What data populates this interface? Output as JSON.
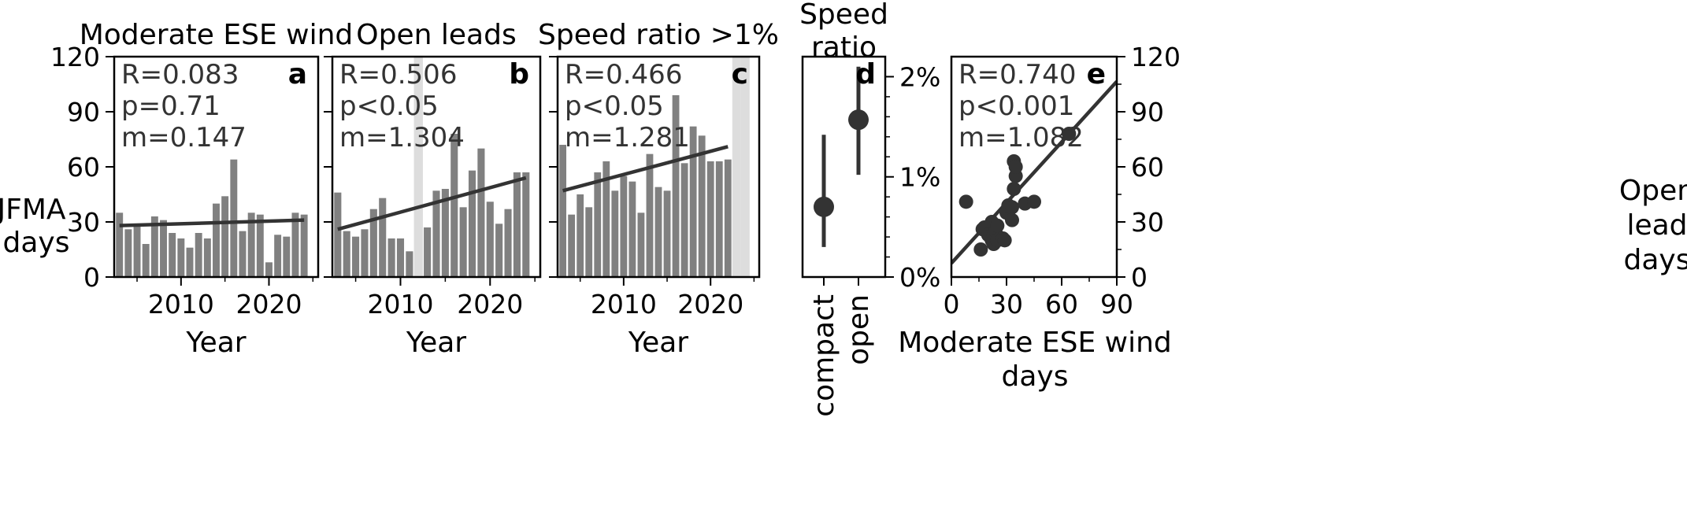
{
  "figure": {
    "left_axis_label": [
      "JFMA",
      "days"
    ],
    "right_axis_label": [
      "Open",
      "lead",
      "days"
    ]
  },
  "chart_data": [
    {
      "id": "a",
      "type": "bar",
      "title": "Moderate ESE wind",
      "letter": "a",
      "xlabel": "Year",
      "ylabel": "JFMA days",
      "stats": [
        "R=0.083",
        "p=0.71",
        "m=0.147"
      ],
      "xlim": [
        2002.4,
        2025.6
      ],
      "ylim": [
        0,
        120
      ],
      "xticks": [
        2010,
        2020
      ],
      "xminor": [
        2005,
        2015,
        2025
      ],
      "yticks": [
        0,
        30,
        60,
        90,
        120
      ],
      "show_yticklabels": true,
      "shaded_years": [],
      "x": [
        2003,
        2004,
        2005,
        2006,
        2007,
        2008,
        2009,
        2010,
        2011,
        2012,
        2013,
        2014,
        2015,
        2016,
        2017,
        2018,
        2019,
        2020,
        2021,
        2022,
        2023,
        2024
      ],
      "values": [
        35,
        26,
        28,
        18,
        33,
        31,
        24,
        21,
        16,
        24,
        21,
        40,
        44,
        64,
        25,
        35,
        34,
        8,
        23,
        22,
        35,
        34
      ],
      "trend": {
        "x": [
          2003,
          2024
        ],
        "y": [
          28,
          31
        ]
      },
      "bar_color": "#808080",
      "trend_color": "#333333"
    },
    {
      "id": "b",
      "type": "bar",
      "title": "Open leads",
      "letter": "b",
      "xlabel": "Year",
      "stats": [
        "R=0.506",
        "p<0.05",
        "m=1.304"
      ],
      "xlim": [
        2002.4,
        2025.6
      ],
      "ylim": [
        0,
        120
      ],
      "xticks": [
        2010,
        2020
      ],
      "xminor": [
        2005,
        2015,
        2025
      ],
      "yticks": [
        0,
        30,
        60,
        90,
        120
      ],
      "show_yticklabels": false,
      "shaded_years": [
        2012
      ],
      "x": [
        2003,
        2004,
        2005,
        2006,
        2007,
        2008,
        2009,
        2010,
        2011,
        2013,
        2014,
        2015,
        2016,
        2017,
        2018,
        2019,
        2020,
        2021,
        2022,
        2023,
        2024
      ],
      "values": [
        46,
        25,
        22,
        26,
        37,
        43,
        21,
        21,
        14,
        27,
        47,
        48,
        78,
        38,
        58,
        70,
        41,
        29,
        37,
        57,
        57
      ],
      "trend": {
        "x": [
          2003,
          2024
        ],
        "y": [
          26,
          54
        ]
      },
      "bar_color": "#808080",
      "trend_color": "#333333"
    },
    {
      "id": "c",
      "type": "bar",
      "title": "Speed ratio >1%",
      "letter": "c",
      "xlabel": "Year",
      "stats": [
        "R=0.466",
        "p<0.05",
        "m=1.281"
      ],
      "xlim": [
        2002.4,
        2025.6
      ],
      "ylim": [
        0,
        120
      ],
      "xticks": [
        2010,
        2020
      ],
      "xminor": [
        2005,
        2015,
        2025
      ],
      "yticks": [
        0,
        30,
        60,
        90,
        120
      ],
      "show_yticklabels": false,
      "shaded_years": [
        2023,
        2024
      ],
      "x": [
        2003,
        2004,
        2005,
        2006,
        2007,
        2008,
        2009,
        2010,
        2011,
        2012,
        2013,
        2014,
        2015,
        2016,
        2017,
        2018,
        2019,
        2020,
        2021,
        2022
      ],
      "values": [
        72,
        34,
        45,
        38,
        57,
        63,
        47,
        55,
        52,
        35,
        67,
        49,
        47,
        99,
        62,
        82,
        77,
        63,
        63,
        64
      ],
      "trend": {
        "x": [
          2003,
          2022
        ],
        "y": [
          47,
          71
        ]
      },
      "bar_color": "#808080",
      "trend_color": "#333333"
    },
    {
      "id": "d",
      "type": "errorbar",
      "title": [
        "Speed",
        "ratio"
      ],
      "letter": "d",
      "categories": [
        "compact",
        "open"
      ],
      "values": [
        0.7,
        1.57
      ],
      "lower": [
        0.3,
        1.02
      ],
      "upper": [
        1.42,
        2.1
      ],
      "ylim": [
        0,
        2.2
      ],
      "yticks": [
        0,
        1,
        2
      ],
      "yticklabels": [
        "0%",
        "1%",
        "2%"
      ],
      "yminor": [
        0.2,
        0.4,
        0.6,
        0.8,
        1.2,
        1.4,
        1.6,
        1.8
      ],
      "color": "#333333"
    },
    {
      "id": "e",
      "type": "scatter",
      "letter": "e",
      "xlabel": [
        "Moderate ESE wind",
        "days"
      ],
      "ylabel": "Open lead days",
      "stats": [
        "R=0.740",
        "p<0.001",
        "m=1.082"
      ],
      "xlim": [
        0,
        90
      ],
      "ylim": [
        0,
        120
      ],
      "xticks": [
        0,
        30,
        60,
        90
      ],
      "xminor": [
        15,
        45,
        75
      ],
      "yticks": [
        0,
        30,
        60,
        90,
        120
      ],
      "yminor": [
        15,
        45,
        75,
        105
      ],
      "x": [
        8,
        16,
        17,
        18,
        20,
        21,
        22,
        22,
        23,
        23,
        24,
        25,
        25,
        28,
        29,
        30,
        31,
        33,
        33,
        34,
        34,
        35,
        35,
        40,
        45,
        64
      ],
      "y": [
        41,
        15,
        26,
        27,
        23,
        22,
        20,
        30,
        18,
        23,
        25,
        20,
        28,
        21,
        20,
        35,
        39,
        38,
        31,
        48,
        63,
        55,
        60,
        40,
        41,
        78
      ],
      "trend": {
        "x": [
          0,
          90
        ],
        "y": [
          7.5,
          106.5
        ]
      },
      "color": "#333333"
    }
  ]
}
